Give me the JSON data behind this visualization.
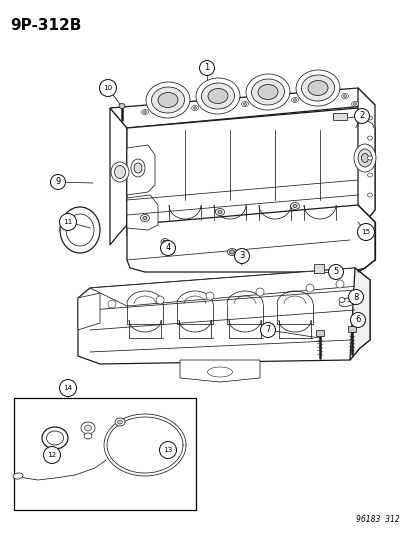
{
  "title": "9P-312B",
  "footer": "96183  312",
  "bg": "#ffffff",
  "lc": "#1a1a1a",
  "figsize": [
    4.14,
    5.33
  ],
  "dpi": 100,
  "items": [
    [
      "1",
      207,
      68,
      207,
      88,
      true
    ],
    [
      "2",
      362,
      118,
      340,
      118,
      true
    ],
    [
      "3",
      240,
      253,
      228,
      243,
      true
    ],
    [
      "4",
      170,
      248,
      165,
      238,
      true
    ],
    [
      "5",
      335,
      272,
      320,
      272,
      true
    ],
    [
      "6",
      358,
      318,
      338,
      340,
      true
    ],
    [
      "7",
      268,
      326,
      282,
      348,
      true
    ],
    [
      "8",
      354,
      296,
      340,
      306,
      true
    ],
    [
      "9",
      62,
      182,
      92,
      185,
      true
    ],
    [
      "10",
      108,
      90,
      120,
      108,
      true
    ],
    [
      "11",
      72,
      222,
      90,
      216,
      true
    ],
    [
      "12",
      52,
      452,
      60,
      440,
      true
    ],
    [
      "13",
      170,
      448,
      160,
      440,
      true
    ],
    [
      "14",
      72,
      390,
      78,
      400,
      true
    ],
    [
      "15",
      364,
      232,
      352,
      224,
      true
    ]
  ]
}
